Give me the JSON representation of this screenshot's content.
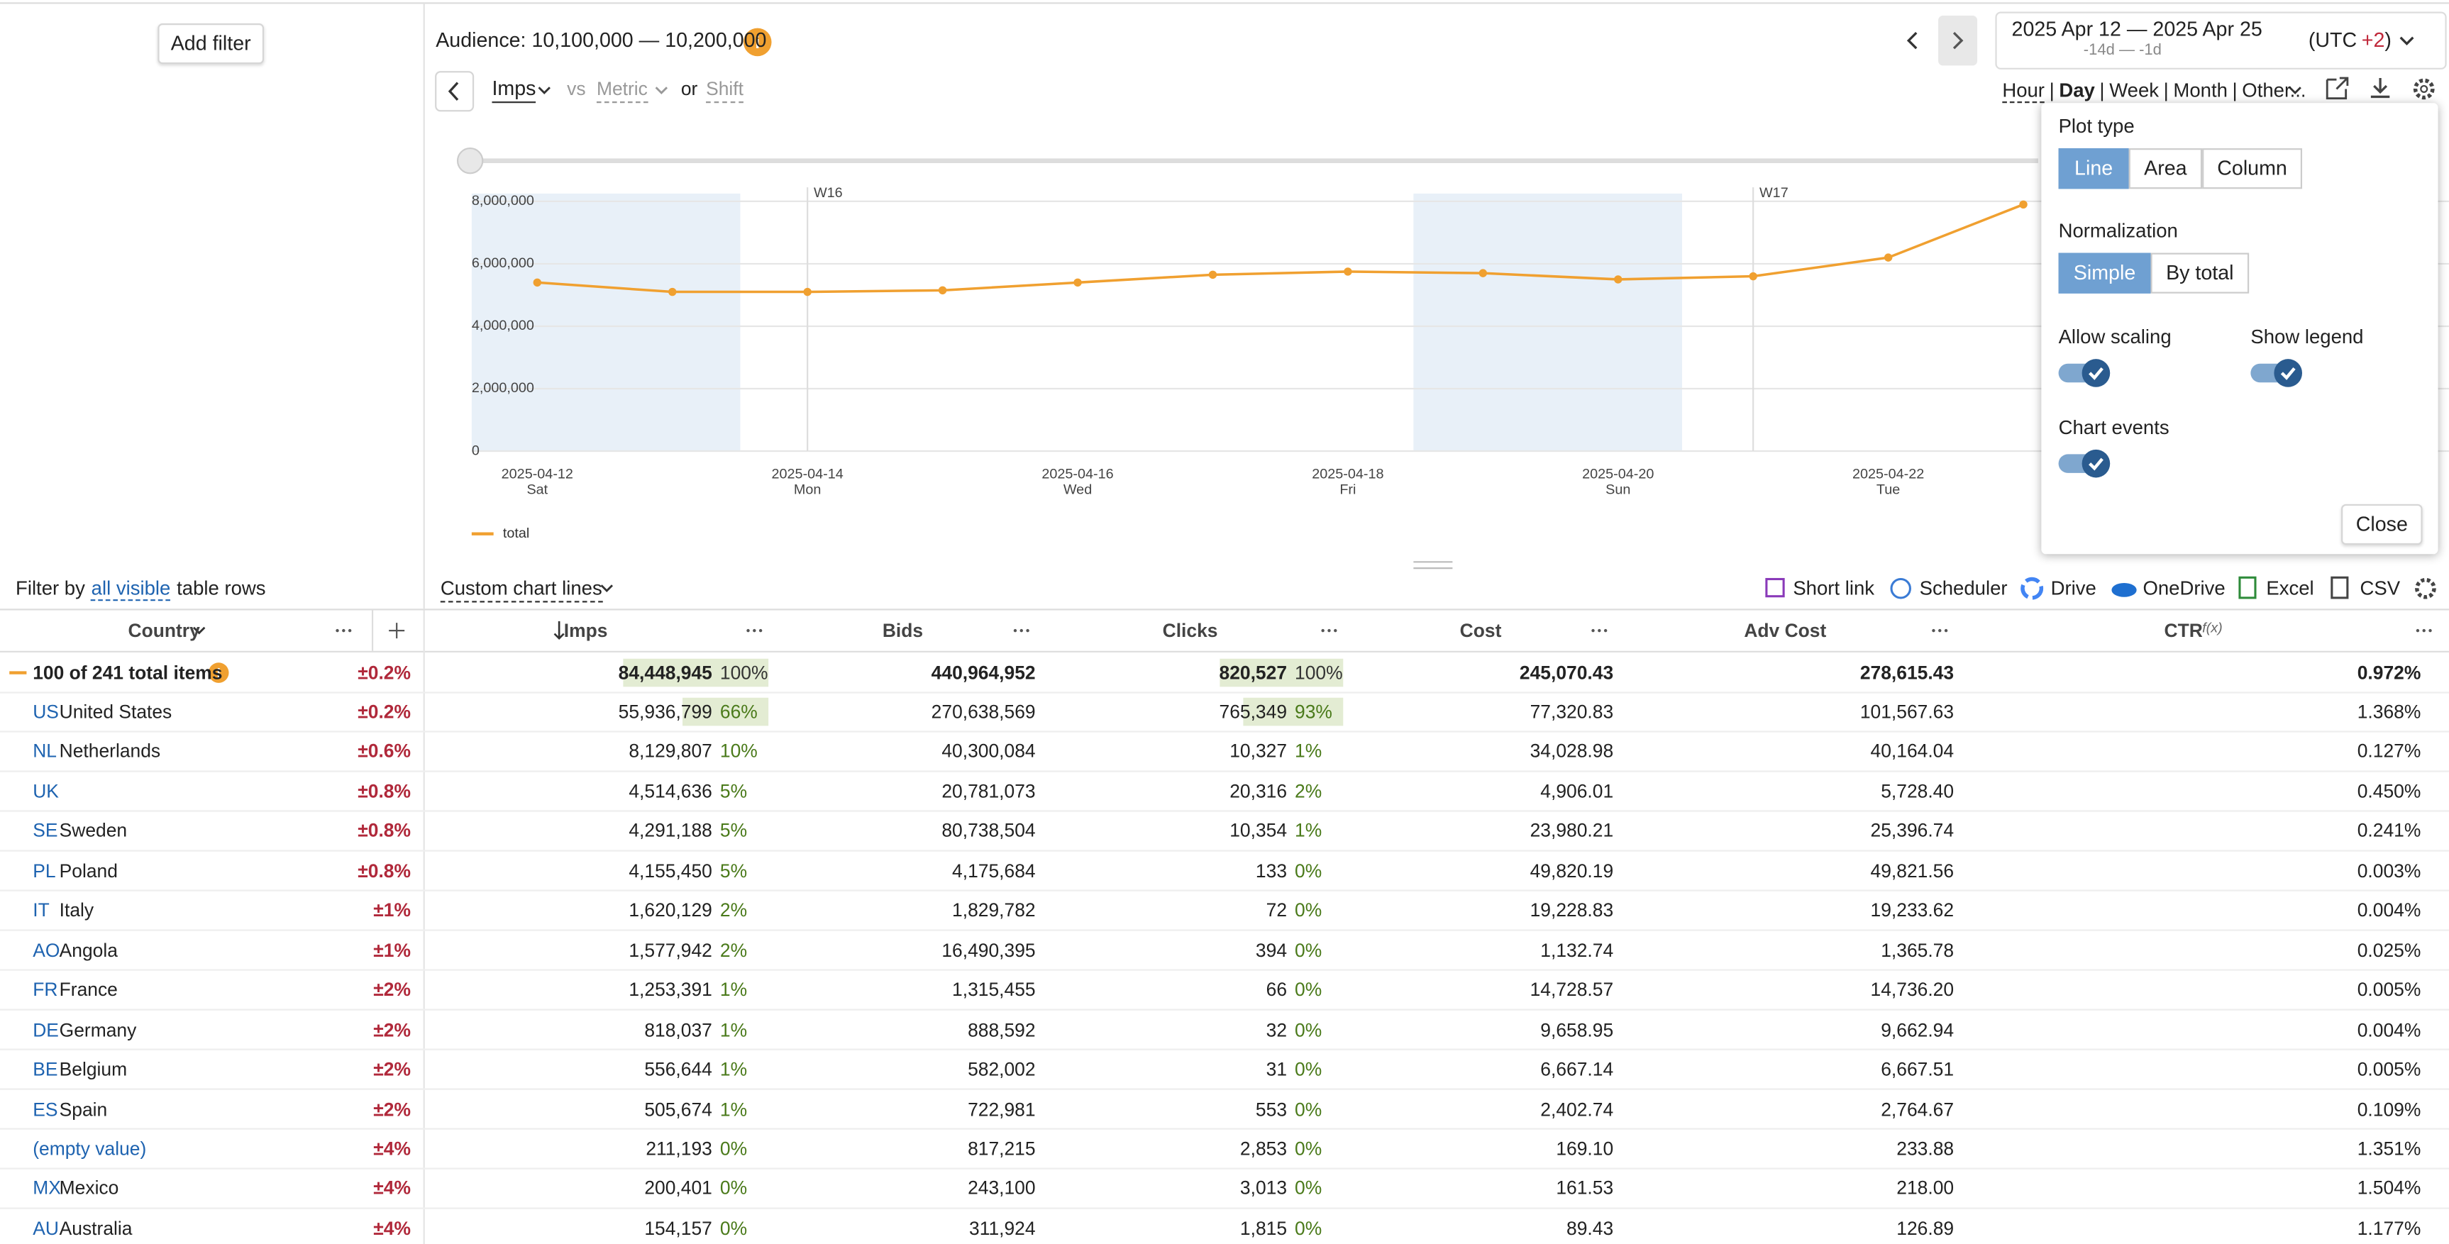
{
  "sidebar": {
    "add_filter": "Add filter",
    "filter_by": "Filter by",
    "all_visible": "all visible",
    "table_rows": "table rows"
  },
  "header": {
    "audience": "Audience: 10,100,000 — 10,200,000",
    "date_range": "2025 Apr 12 — 2025 Apr 25",
    "date_shift": "-14d — -1d",
    "utc_open": "(UTC",
    "utc_offset": "+2",
    "utc_close": ")"
  },
  "metrics": {
    "metric": "Imps",
    "vs": "vs",
    "compare": "Metric",
    "or": "or",
    "shift": "Shift"
  },
  "granularity": {
    "options": [
      "Hour",
      "Day",
      "Week",
      "Month",
      "Other..."
    ],
    "separator": "|",
    "selected": 1
  },
  "chart_data": {
    "type": "line",
    "x": [
      "2025-04-12",
      "2025-04-13",
      "2025-04-14",
      "2025-04-15",
      "2025-04-16",
      "2025-04-17",
      "2025-04-18",
      "2025-04-19",
      "2025-04-20",
      "2025-04-21",
      "2025-04-22",
      "2025-04-23"
    ],
    "series": [
      {
        "name": "total",
        "color": "#f0a030",
        "values": [
          5400000,
          5100000,
          5100000,
          5150000,
          5400000,
          5650000,
          5750000,
          5700000,
          5500000,
          5600000,
          6200000,
          7900000
        ]
      }
    ],
    "ylim": [
      0,
      8000000
    ],
    "yticks": [
      0,
      {
        "value": 2000000,
        "label": "2,000,000"
      },
      {
        "value": 4000000,
        "label": "4,000,000"
      },
      {
        "value": 6000000,
        "label": "6,000,000"
      },
      {
        "value": 8000000,
        "label": "8,000,000"
      }
    ],
    "xtick_labels": [
      [
        "2025-04-12",
        "Sat"
      ],
      [
        "2025-04-14",
        "Mon"
      ],
      [
        "2025-04-16",
        "Wed"
      ],
      [
        "2025-04-18",
        "Fri"
      ],
      [
        "2025-04-20",
        "Sun"
      ],
      [
        "2025-04-22",
        "Tue"
      ]
    ],
    "week_markers": [
      {
        "label": "W16",
        "date": "2025-04-14"
      },
      {
        "label": "W17",
        "date": "2025-04-21"
      }
    ],
    "grid": true,
    "legend": "bottom-left"
  },
  "plot_settings": {
    "plot_type": "Plot type",
    "plot_types": [
      "Line",
      "Area",
      "Column"
    ],
    "plot_type_selected": 0,
    "normalization": "Normalization",
    "normalizations": [
      "Simple",
      "By total"
    ],
    "normalization_selected": 0,
    "allow_scaling": "Allow scaling",
    "allow_scaling_on": true,
    "show_legend": "Show legend",
    "show_legend_on": true,
    "chart_events": "Chart events",
    "chart_events_on": true,
    "close": "Close"
  },
  "toolbar": {
    "custom_chart_lines": "Custom chart lines",
    "exports": [
      "Short link",
      "Scheduler",
      "Drive",
      "OneDrive",
      "Excel",
      "CSV"
    ]
  },
  "table": {
    "columns": [
      "Country",
      "Imps",
      "Bids",
      "Clicks",
      "Cost",
      "Adv Cost",
      "CTR"
    ],
    "ctr_suffix": "f(x)",
    "total": {
      "name": "100 of 241 total items",
      "error": "±0.2%",
      "imps": "84,448,945",
      "imps_share": "100%",
      "bids": "440,964,952",
      "clicks": "820,527",
      "clicks_share": "100%",
      "cost": "245,070.43",
      "adv_cost": "278,615.43",
      "ctr": "0.972%"
    },
    "rows": [
      {
        "code": "US",
        "name": "United States",
        "error": "±0.2%",
        "imps": "55,936,799",
        "imps_share": "66%",
        "bids": "270,638,569",
        "clicks": "765,349",
        "clicks_share": "93%",
        "cost": "77,320.83",
        "adv_cost": "101,567.63",
        "ctr": "1.368%"
      },
      {
        "code": "NL",
        "name": "Netherlands",
        "error": "±0.6%",
        "imps": "8,129,807",
        "imps_share": "10%",
        "bids": "40,300,084",
        "clicks": "10,327",
        "clicks_share": "1%",
        "cost": "34,028.98",
        "adv_cost": "40,164.04",
        "ctr": "0.127%"
      },
      {
        "code": "UK",
        "error": "±0.8%",
        "imps": "4,514,636",
        "imps_share": "5%",
        "bids": "20,781,073",
        "clicks": "20,316",
        "clicks_share": "2%",
        "cost": "4,906.01",
        "adv_cost": "5,728.40",
        "ctr": "0.450%"
      },
      {
        "code": "SE",
        "name": "Sweden",
        "error": "±0.8%",
        "imps": "4,291,188",
        "imps_share": "5%",
        "bids": "80,738,504",
        "clicks": "10,354",
        "clicks_share": "1%",
        "cost": "23,980.21",
        "adv_cost": "25,396.74",
        "ctr": "0.241%"
      },
      {
        "code": "PL",
        "name": "Poland",
        "error": "±0.8%",
        "imps": "4,155,450",
        "imps_share": "5%",
        "bids": "4,175,684",
        "clicks": "133",
        "clicks_share": "0%",
        "cost": "49,820.19",
        "adv_cost": "49,821.56",
        "ctr": "0.003%"
      },
      {
        "code": "IT",
        "name": "Italy",
        "error": "±1%",
        "imps": "1,620,129",
        "imps_share": "2%",
        "bids": "1,829,782",
        "clicks": "72",
        "clicks_share": "0%",
        "cost": "19,228.83",
        "adv_cost": "19,233.62",
        "ctr": "0.004%"
      },
      {
        "code": "AO",
        "name": "Angola",
        "error": "±1%",
        "imps": "1,577,942",
        "imps_share": "2%",
        "bids": "16,490,395",
        "clicks": "394",
        "clicks_share": "0%",
        "cost": "1,132.74",
        "adv_cost": "1,365.78",
        "ctr": "0.025%"
      },
      {
        "code": "FR",
        "name": "France",
        "error": "±2%",
        "imps": "1,253,391",
        "imps_share": "1%",
        "bids": "1,315,455",
        "clicks": "66",
        "clicks_share": "0%",
        "cost": "14,728.57",
        "adv_cost": "14,736.20",
        "ctr": "0.005%"
      },
      {
        "code": "DE",
        "name": "Germany",
        "error": "±2%",
        "imps": "818,037",
        "imps_share": "1%",
        "bids": "888,592",
        "clicks": "32",
        "clicks_share": "0%",
        "cost": "9,658.95",
        "adv_cost": "9,662.94",
        "ctr": "0.004%"
      },
      {
        "code": "BE",
        "name": "Belgium",
        "error": "±2%",
        "imps": "556,644",
        "imps_share": "1%",
        "bids": "582,002",
        "clicks": "31",
        "clicks_share": "0%",
        "cost": "6,667.14",
        "adv_cost": "6,667.51",
        "ctr": "0.005%"
      },
      {
        "code": "ES",
        "name": "Spain",
        "error": "±2%",
        "imps": "505,674",
        "imps_share": "1%",
        "bids": "722,981",
        "clicks": "553",
        "clicks_share": "0%",
        "cost": "2,402.74",
        "adv_cost": "2,764.67",
        "ctr": "0.109%"
      },
      {
        "name": "(empty value)",
        "error": "±4%",
        "imps": "211,193",
        "imps_share": "0%",
        "bids": "817,215",
        "clicks": "2,853",
        "clicks_share": "0%",
        "cost": "169.10",
        "adv_cost": "233.88",
        "ctr": "1.351%"
      },
      {
        "code": "MX",
        "name": "Mexico",
        "error": "±4%",
        "imps": "200,401",
        "imps_share": "0%",
        "bids": "243,100",
        "clicks": "3,013",
        "clicks_share": "0%",
        "cost": "161.53",
        "adv_cost": "218.00",
        "ctr": "1.504%"
      },
      {
        "code": "AU",
        "name": "Australia",
        "error": "±4%",
        "imps": "154,157",
        "imps_share": "0%",
        "bids": "311,924",
        "clicks": "1,815",
        "clicks_share": "0%",
        "cost": "89.43",
        "adv_cost": "126.89",
        "ctr": "1.177%"
      }
    ]
  }
}
